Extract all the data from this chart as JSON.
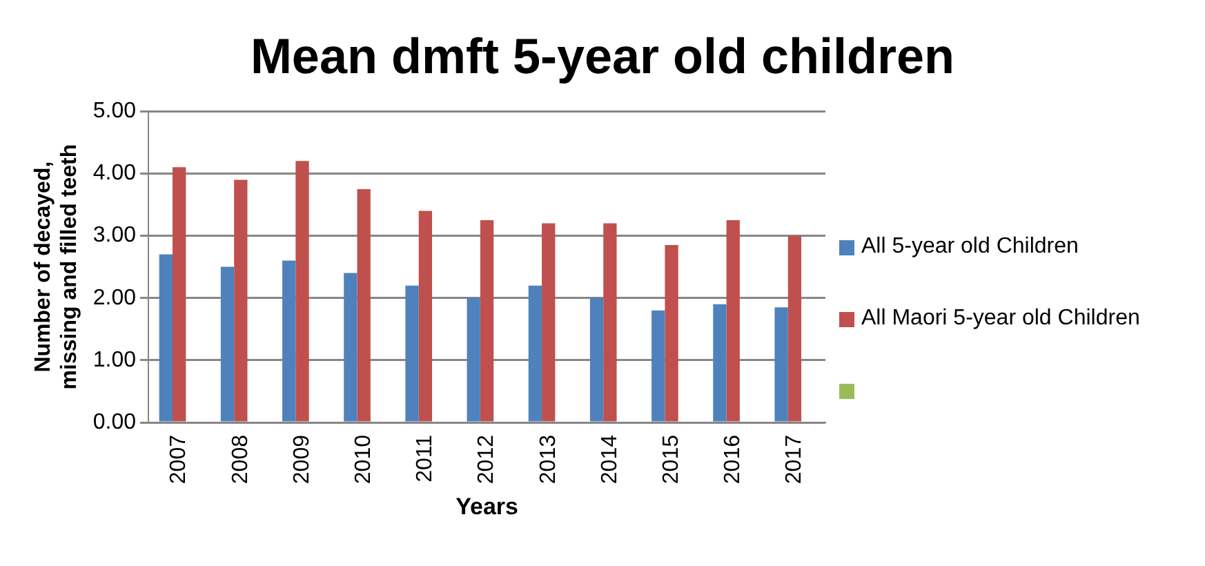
{
  "chart_data": {
    "type": "bar",
    "title": "Mean dmft 5-year old children",
    "xlabel": "Years",
    "ylabel": "Number of decayed, missing and filled teeth",
    "categories": [
      "2007",
      "2008",
      "2009",
      "2010",
      "2011",
      "2012",
      "2013",
      "2014",
      "2015",
      "2016",
      "2017"
    ],
    "series": [
      {
        "name": "All 5-year old Children",
        "color": "#4f81bd",
        "values": [
          2.7,
          2.5,
          2.6,
          2.4,
          2.2,
          2.0,
          2.2,
          2.0,
          1.8,
          1.9,
          1.85
        ]
      },
      {
        "name": "All Maori 5-year old Children",
        "color": "#c0504d",
        "values": [
          4.1,
          3.9,
          4.2,
          3.75,
          3.4,
          3.25,
          3.2,
          3.2,
          2.85,
          3.25,
          3.0
        ]
      },
      {
        "color": "#9bbb59",
        "values": [
          null,
          null,
          null,
          null,
          null,
          null,
          null,
          null,
          null,
          null,
          null
        ]
      }
    ],
    "ylim": [
      0,
      5
    ],
    "yticks": [
      {
        "value": 0,
        "label": "0.00"
      },
      {
        "value": 1,
        "label": "1.00"
      },
      {
        "value": 2,
        "label": "2.00"
      },
      {
        "value": 3,
        "label": "3.00"
      },
      {
        "value": 4,
        "label": "4.00"
      },
      {
        "value": 5,
        "label": "5.00"
      }
    ],
    "grid": "y",
    "legend": "right"
  }
}
